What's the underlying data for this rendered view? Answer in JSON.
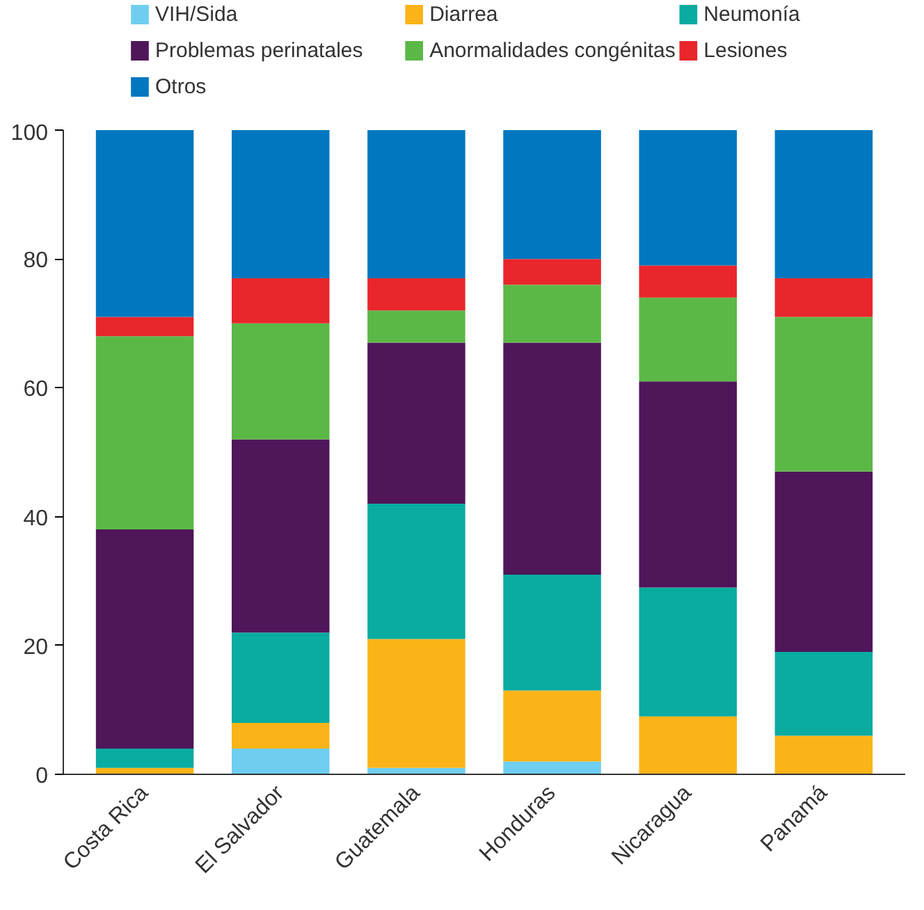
{
  "chart_data": {
    "type": "bar",
    "stacked": true,
    "categories": [
      "Costa Rica",
      "El Salvador",
      "Guatemala",
      "Honduras",
      "Nicaragua",
      "Panamá"
    ],
    "series": [
      {
        "name": "VIH/Sida",
        "color": "#6fcef0",
        "values": [
          0,
          4,
          1,
          2,
          0,
          0
        ]
      },
      {
        "name": "Diarrea",
        "color": "#fbb418",
        "values": [
          1,
          4,
          20,
          11,
          9,
          6
        ]
      },
      {
        "name": "Neumonía",
        "color": "#0aaba0",
        "values": [
          3,
          14,
          21,
          18,
          20,
          13
        ]
      },
      {
        "name": "Problemas perinatales",
        "color": "#4f1659",
        "values": [
          34,
          30,
          25,
          36,
          32,
          28
        ]
      },
      {
        "name": "Anormalidades congénitas",
        "color": "#5bb846",
        "values": [
          30,
          18,
          5,
          9,
          13,
          24
        ]
      },
      {
        "name": "Lesiones",
        "color": "#e8262b",
        "values": [
          3,
          7,
          5,
          4,
          5,
          6
        ]
      },
      {
        "name": "Otros",
        "color": "#0077c0",
        "values": [
          29,
          23,
          23,
          20,
          21,
          23
        ]
      }
    ],
    "ylim": [
      0,
      100
    ],
    "yticks": [
      0,
      20,
      40,
      60,
      80,
      100
    ],
    "grid": false,
    "legend": "top"
  }
}
